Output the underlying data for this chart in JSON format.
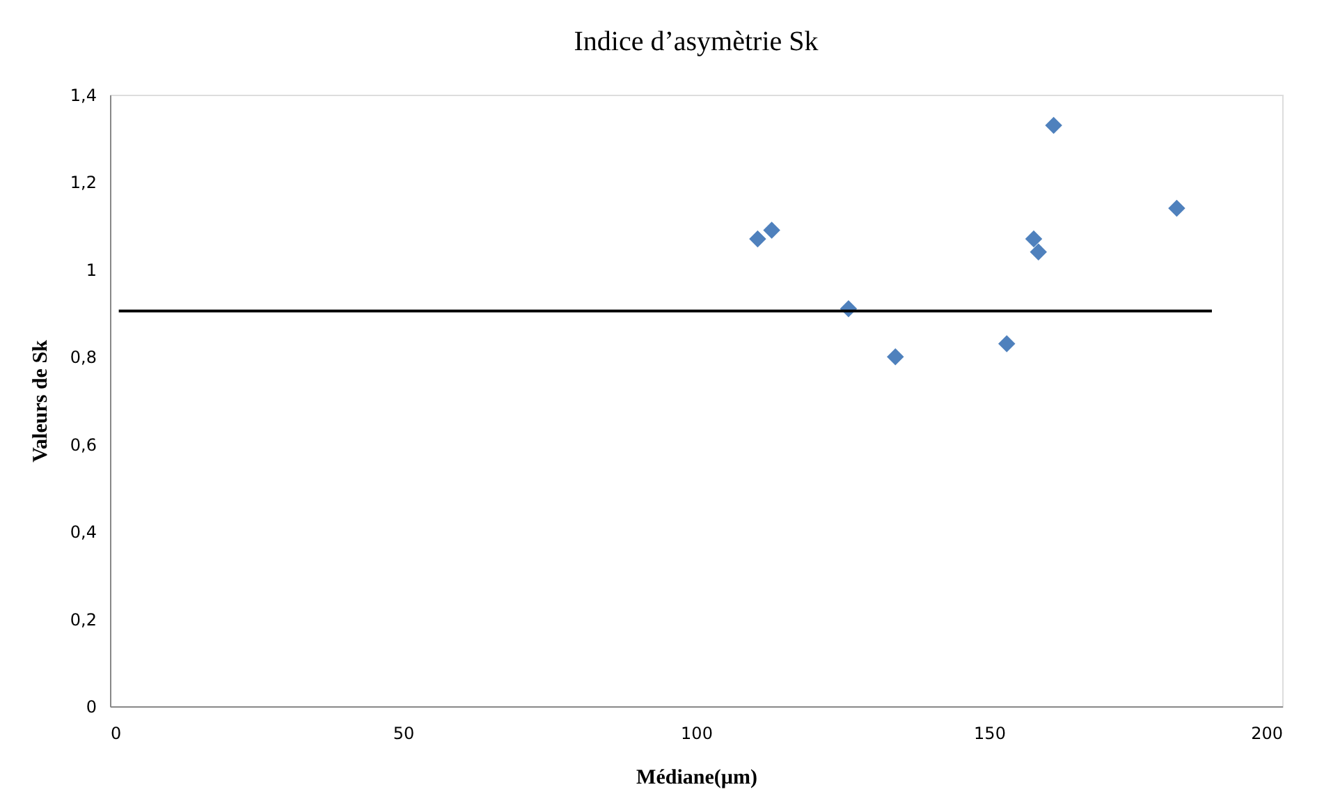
{
  "chart_data": {
    "type": "scatter",
    "title": "Indice d’asymètrie Sk",
    "xlabel": "Médiane(µm)",
    "ylabel": "Valeurs de Sk",
    "xlim": [
      0,
      200
    ],
    "xticks": [
      0,
      50,
      100,
      150,
      200
    ],
    "ylim": [
      0,
      1.4
    ],
    "yticks": [
      0,
      {
        "value": 0.2,
        "label": "0,2"
      },
      {
        "value": 0.4,
        "label": "0,4"
      },
      {
        "value": 0.6,
        "label": "0,6"
      },
      {
        "value": 0.8,
        "label": "0,8"
      },
      1,
      {
        "value": 1.2,
        "label": "1,2"
      },
      {
        "value": 1.4,
        "label": "1,4"
      }
    ],
    "grid": false,
    "series": [
      {
        "marker": "diamond",
        "color": "#4f81bd",
        "x": [
          110.5,
          112.9,
          126,
          134,
          153,
          157.6,
          158.4,
          161,
          182
        ],
        "values": [
          1.07,
          1.09,
          0.91,
          0.8,
          0.83,
          1.07,
          1.04,
          1.33,
          1.14
        ]
      },
      {
        "type": "line",
        "color": "#000000",
        "line_style": "solid",
        "x": [
          1.5,
          188
        ],
        "values": [
          0.905,
          0.905
        ]
      }
    ]
  }
}
